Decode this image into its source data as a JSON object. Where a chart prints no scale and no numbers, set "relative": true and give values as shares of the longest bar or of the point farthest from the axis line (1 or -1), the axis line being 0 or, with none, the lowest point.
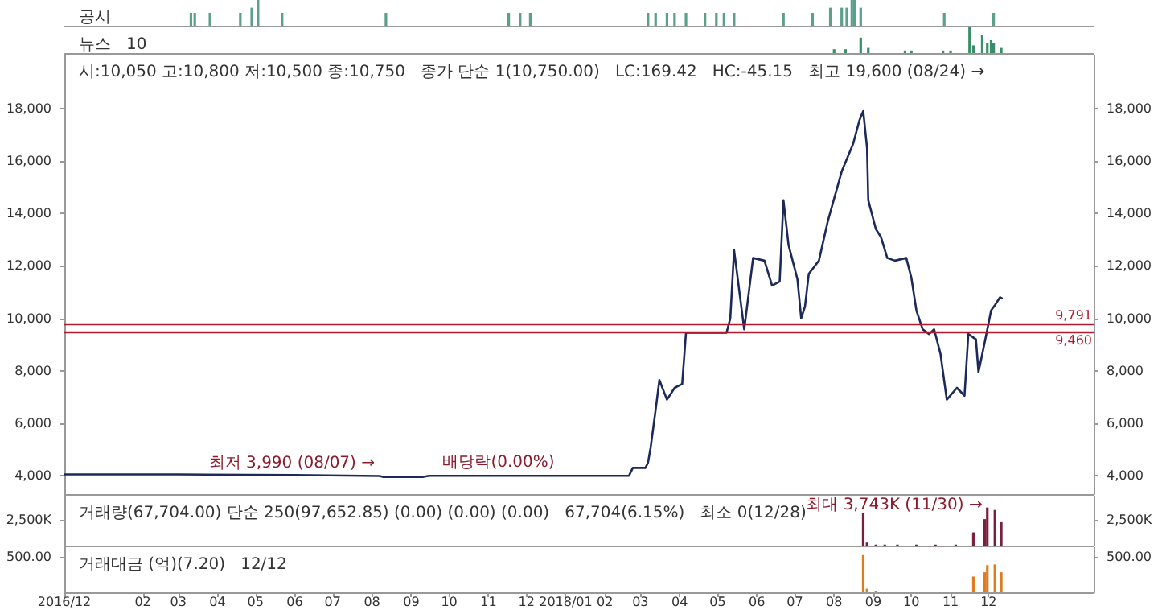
{
  "chart_data": [
    {
      "type": "bar",
      "title": "공시",
      "relative": true,
      "tick_labels": false,
      "xlim": [
        "2016-12-01",
        "2019-02-22"
      ],
      "x": [
        "2017-03-11",
        "2017-03-14",
        "2017-03-26",
        "2017-04-19",
        "2017-04-28",
        "2017-05-03",
        "2017-05-22",
        "2017-08-12",
        "2017-11-17",
        "2017-11-26",
        "2017-12-04",
        "2018-03-07",
        "2018-03-13",
        "2018-03-22",
        "2018-03-28",
        "2018-04-06",
        "2018-04-21",
        "2018-04-30",
        "2018-05-06",
        "2018-05-14",
        "2018-06-22",
        "2018-07-15",
        "2018-07-29",
        "2018-08-07",
        "2018-08-11",
        "2018-08-15",
        "2018-08-17",
        "2018-08-22",
        "2018-10-27",
        "2018-12-05"
      ],
      "series": [
        {
          "color": "#5aa08a",
          "values": [
            0.5,
            0.5,
            0.5,
            0.5,
            0.7,
            1,
            0.5,
            0.5,
            0.5,
            0.5,
            0.5,
            0.5,
            0.5,
            0.5,
            0.5,
            0.5,
            0.5,
            0.5,
            0.5,
            0.5,
            0.5,
            0.5,
            0.7,
            0.7,
            0.7,
            1,
            1,
            0.7,
            0.5,
            0.5
          ]
        }
      ]
    },
    {
      "type": "bar",
      "title": "뉴스",
      "relative": true,
      "tick_labels": false,
      "annotations": [
        "10"
      ],
      "xlim": [
        "2016-12-01",
        "2019-02-22"
      ],
      "x": [
        "2018-08-01",
        "2018-08-10",
        "2018-08-22",
        "2018-08-28",
        "2018-09-26",
        "2018-10-01",
        "2018-10-26",
        "2018-11-01",
        "2018-11-16",
        "2018-11-19",
        "2018-11-26",
        "2018-11-30",
        "2018-12-03",
        "2018-12-05",
        "2018-12-11"
      ],
      "series": [
        {
          "color": "#3a8f6a",
          "values": [
            0.15,
            0.15,
            0.6,
            0.2,
            0.1,
            0.1,
            0.1,
            0.1,
            1,
            0.3,
            0.7,
            0.4,
            0.5,
            0.4,
            0.2
          ]
        }
      ]
    },
    {
      "type": "line",
      "title": "시:10,050 고:10,800 저:10,500 종:10,750",
      "subtitle": "종가 단순 1(10,750.00)",
      "tick_labels": "y",
      "xlim": [
        "2016-12-01",
        "2019-02-22"
      ],
      "ylim": [
        3300,
        20050
      ],
      "yticks": [
        {
          "value": 4000,
          "label": "4,000"
        },
        {
          "value": 6000,
          "label": "6,000"
        },
        {
          "value": 8000,
          "label": "8,000"
        },
        {
          "value": 10000,
          "label": "10,000"
        },
        {
          "value": 12000,
          "label": "12,000"
        },
        {
          "value": 14000,
          "label": "14,000"
        },
        {
          "value": 16000,
          "label": "16,000"
        },
        {
          "value": 18000,
          "label": "18,000"
        }
      ],
      "x": [
        "2016-12-01",
        "2017-03-01",
        "2017-06-01",
        "2017-08-07",
        "2017-08-10",
        "2017-09-10",
        "2017-09-15",
        "2017-12-27",
        "2018-02-20",
        "2018-02-23",
        "2018-03-05",
        "2018-03-07",
        "2018-03-09",
        "2018-03-13",
        "2018-03-16",
        "2018-03-22",
        "2018-03-28",
        "2018-04-03",
        "2018-04-06",
        "2018-05-08",
        "2018-05-11",
        "2018-05-14",
        "2018-05-22",
        "2018-05-29",
        "2018-06-07",
        "2018-06-13",
        "2018-06-19",
        "2018-06-22",
        "2018-06-26",
        "2018-07-03",
        "2018-07-06",
        "2018-07-09",
        "2018-07-12",
        "2018-07-20",
        "2018-07-27",
        "2018-08-07",
        "2018-08-16",
        "2018-08-21",
        "2018-08-24",
        "2018-08-27",
        "2018-08-28",
        "2018-09-03",
        "2018-09-07",
        "2018-09-12",
        "2018-09-18",
        "2018-09-27",
        "2018-10-01",
        "2018-10-05",
        "2018-10-10",
        "2018-10-15",
        "2018-10-19",
        "2018-10-24",
        "2018-10-29",
        "2018-11-06",
        "2018-11-12",
        "2018-11-15",
        "2018-11-21",
        "2018-11-23",
        "2018-11-28",
        "2018-12-03",
        "2018-12-06",
        "2018-12-10",
        "2018-12-12"
      ],
      "series": [
        {
          "color": "#1c2a5a",
          "values": [
            4050,
            4050,
            4030,
            3990,
            3950,
            3950,
            4000,
            4000,
            4000,
            4300,
            4300,
            4500,
            5050,
            6500,
            7650,
            6900,
            7350,
            7500,
            9450,
            9450,
            10000,
            12600,
            9580,
            12300,
            12200,
            11250,
            11400,
            14500,
            12800,
            11500,
            10000,
            10450,
            11700,
            12200,
            13700,
            15600,
            16650,
            17550,
            17900,
            16500,
            14500,
            13400,
            13100,
            12300,
            12200,
            12300,
            11550,
            10300,
            9580,
            9400,
            9580,
            8650,
            6900,
            7350,
            7050,
            9400,
            9200,
            7950,
            9100,
            10300,
            10500,
            10800,
            10750
          ]
        }
      ],
      "ref_lines": [
        {
          "axis": "y",
          "value": 9791,
          "label": "9,791",
          "color": "#b01c2e"
        },
        {
          "axis": "y",
          "value": 9460,
          "label": "9,460",
          "color": "#b01c2e"
        }
      ],
      "annotations": [
        "LC:169.42",
        "HC:-45.15",
        "최고 19,600 (08/24) →",
        {
          "text": "최저 3,990 (08/07) →",
          "x": "2017-08-07",
          "y": 3990
        },
        {
          "text": "배당락(0.00%)",
          "x": "2017-12-27",
          "y": 4000
        }
      ]
    },
    {
      "type": "bar",
      "title": "거래량(67,704.00) 단순 250(97,652.85) (0.00) (0.00) (0.00)",
      "tick_labels": "y",
      "xlim": [
        "2016-12-01",
        "2019-02-22"
      ],
      "ylim": [
        0,
        4900
      ],
      "yticks": [
        {
          "value": 2500,
          "label": "2,500K"
        }
      ],
      "x": [
        "2018-08-24",
        "2018-08-27",
        "2018-09-03",
        "2018-09-10",
        "2018-09-20",
        "2018-10-05",
        "2018-10-20",
        "2018-11-05",
        "2018-11-19",
        "2018-11-28",
        "2018-11-30",
        "2018-12-06",
        "2018-12-11"
      ],
      "series": [
        {
          "color": "#7a1f3d",
          "values": [
            3200,
            300,
            100,
            100,
            100,
            100,
            100,
            100,
            1300,
            2600,
            3743,
            3500,
            2300
          ]
        }
      ],
      "annotations": [
        "67,704(6.15%)",
        "최소 0(12/28)",
        {
          "text": "최대 3,743K (11/30) →",
          "x": "2018-11-30",
          "y": 3743
        }
      ]
    },
    {
      "type": "bar",
      "title": "거래대금 (억)(7.20)",
      "xlim": [
        "2016-12-01",
        "2019-02-22"
      ],
      "ylim": [
        0,
        630
      ],
      "yticks": [
        {
          "value": 500,
          "label": "500.00"
        }
      ],
      "xticks": [
        {
          "value": "2016-12-01",
          "label": "2016/12"
        },
        {
          "value": "2017-02-01",
          "label": "02"
        },
        {
          "value": "2017-03-01",
          "label": "03"
        },
        {
          "value": "2017-04-01",
          "label": "04"
        },
        {
          "value": "2017-05-01",
          "label": "05"
        },
        {
          "value": "2017-06-01",
          "label": "06"
        },
        {
          "value": "2017-07-01",
          "label": "07"
        },
        {
          "value": "2017-08-01",
          "label": "08"
        },
        {
          "value": "2017-09-01",
          "label": "09"
        },
        {
          "value": "2017-10-01",
          "label": "10"
        },
        {
          "value": "2017-11-01",
          "label": "11"
        },
        {
          "value": "2017-12-01",
          "label": "12"
        },
        {
          "value": "2018-01-01",
          "label": "2018/01"
        },
        {
          "value": "2018-02-01",
          "label": "02"
        },
        {
          "value": "2018-03-01",
          "label": "03"
        },
        {
          "value": "2018-04-01",
          "label": "04"
        },
        {
          "value": "2018-05-01",
          "label": "05"
        },
        {
          "value": "2018-06-01",
          "label": "06"
        },
        {
          "value": "2018-07-01",
          "label": "07"
        },
        {
          "value": "2018-08-01",
          "label": "08"
        },
        {
          "value": "2018-09-01",
          "label": "09"
        },
        {
          "value": "2018-10-01",
          "label": "10"
        },
        {
          "value": "2018-11-01",
          "label": "11"
        },
        {
          "value": "2018-12-01",
          "label": "12"
        }
      ],
      "x": [
        "2018-08-24",
        "2018-08-27",
        "2018-09-03",
        "2018-11-19",
        "2018-11-28",
        "2018-11-30",
        "2018-12-06",
        "2018-12-11"
      ],
      "series": [
        {
          "color": "#e07b20",
          "values": [
            520,
            50,
            20,
            220,
            280,
            380,
            390,
            280
          ]
        }
      ],
      "annotations": [
        "12/12"
      ]
    }
  ]
}
